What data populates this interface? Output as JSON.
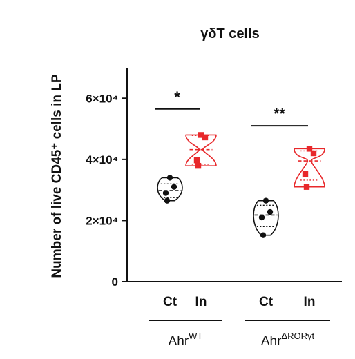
{
  "chart_data": {
    "type": "violin",
    "title": "γδT cells",
    "ylabel": "Number of live CD45⁺ cells in LP",
    "ylim": [
      0,
      70000
    ],
    "yticks": [
      {
        "value": 0,
        "label": "0"
      },
      {
        "value": 20000,
        "label": "2×10⁴"
      },
      {
        "value": 40000,
        "label": "4×10⁴"
      },
      {
        "value": 60000,
        "label": "6×10⁴"
      }
    ],
    "categories": [
      "Ct",
      "In",
      "Ct",
      "In"
    ],
    "groups": [
      {
        "label_base": "Ahr",
        "label_sup": "WT",
        "categories": [
          0,
          1
        ]
      },
      {
        "label_base": "Ahr",
        "label_sup": "ΔRORγt",
        "categories": [
          2,
          3
        ]
      }
    ],
    "series": [
      {
        "category": "Ct",
        "group": "Ahr WT",
        "color": "#111111",
        "marker": "circle",
        "values": [
          34000,
          31000,
          29000,
          26500
        ],
        "median": 29800,
        "q1": 27500,
        "q3": 32000
      },
      {
        "category": "In",
        "group": "Ahr WT",
        "color": "#e8282b",
        "marker": "square",
        "values": [
          48000,
          47200,
          39700,
          37900
        ],
        "median": 43200,
        "q1": 38400,
        "q3": 47800
      },
      {
        "category": "Ct",
        "group": "Ahr ΔRORγt",
        "color": "#111111",
        "marker": "circle",
        "values": [
          26500,
          22800,
          21000,
          15200
        ],
        "median": 21800,
        "q1": 18000,
        "q3": 25000
      },
      {
        "category": "In",
        "group": "Ahr ΔRORγt",
        "color": "#e8282b",
        "marker": "square",
        "values": [
          43500,
          42000,
          35200,
          31000
        ],
        "median": 39500,
        "q1": 33200,
        "q3": 42800
      }
    ],
    "significance": [
      {
        "label": "*",
        "between": [
          0,
          1
        ]
      },
      {
        "label": "**",
        "between": [
          2,
          3
        ]
      }
    ],
    "grid": false,
    "legend": "none"
  }
}
